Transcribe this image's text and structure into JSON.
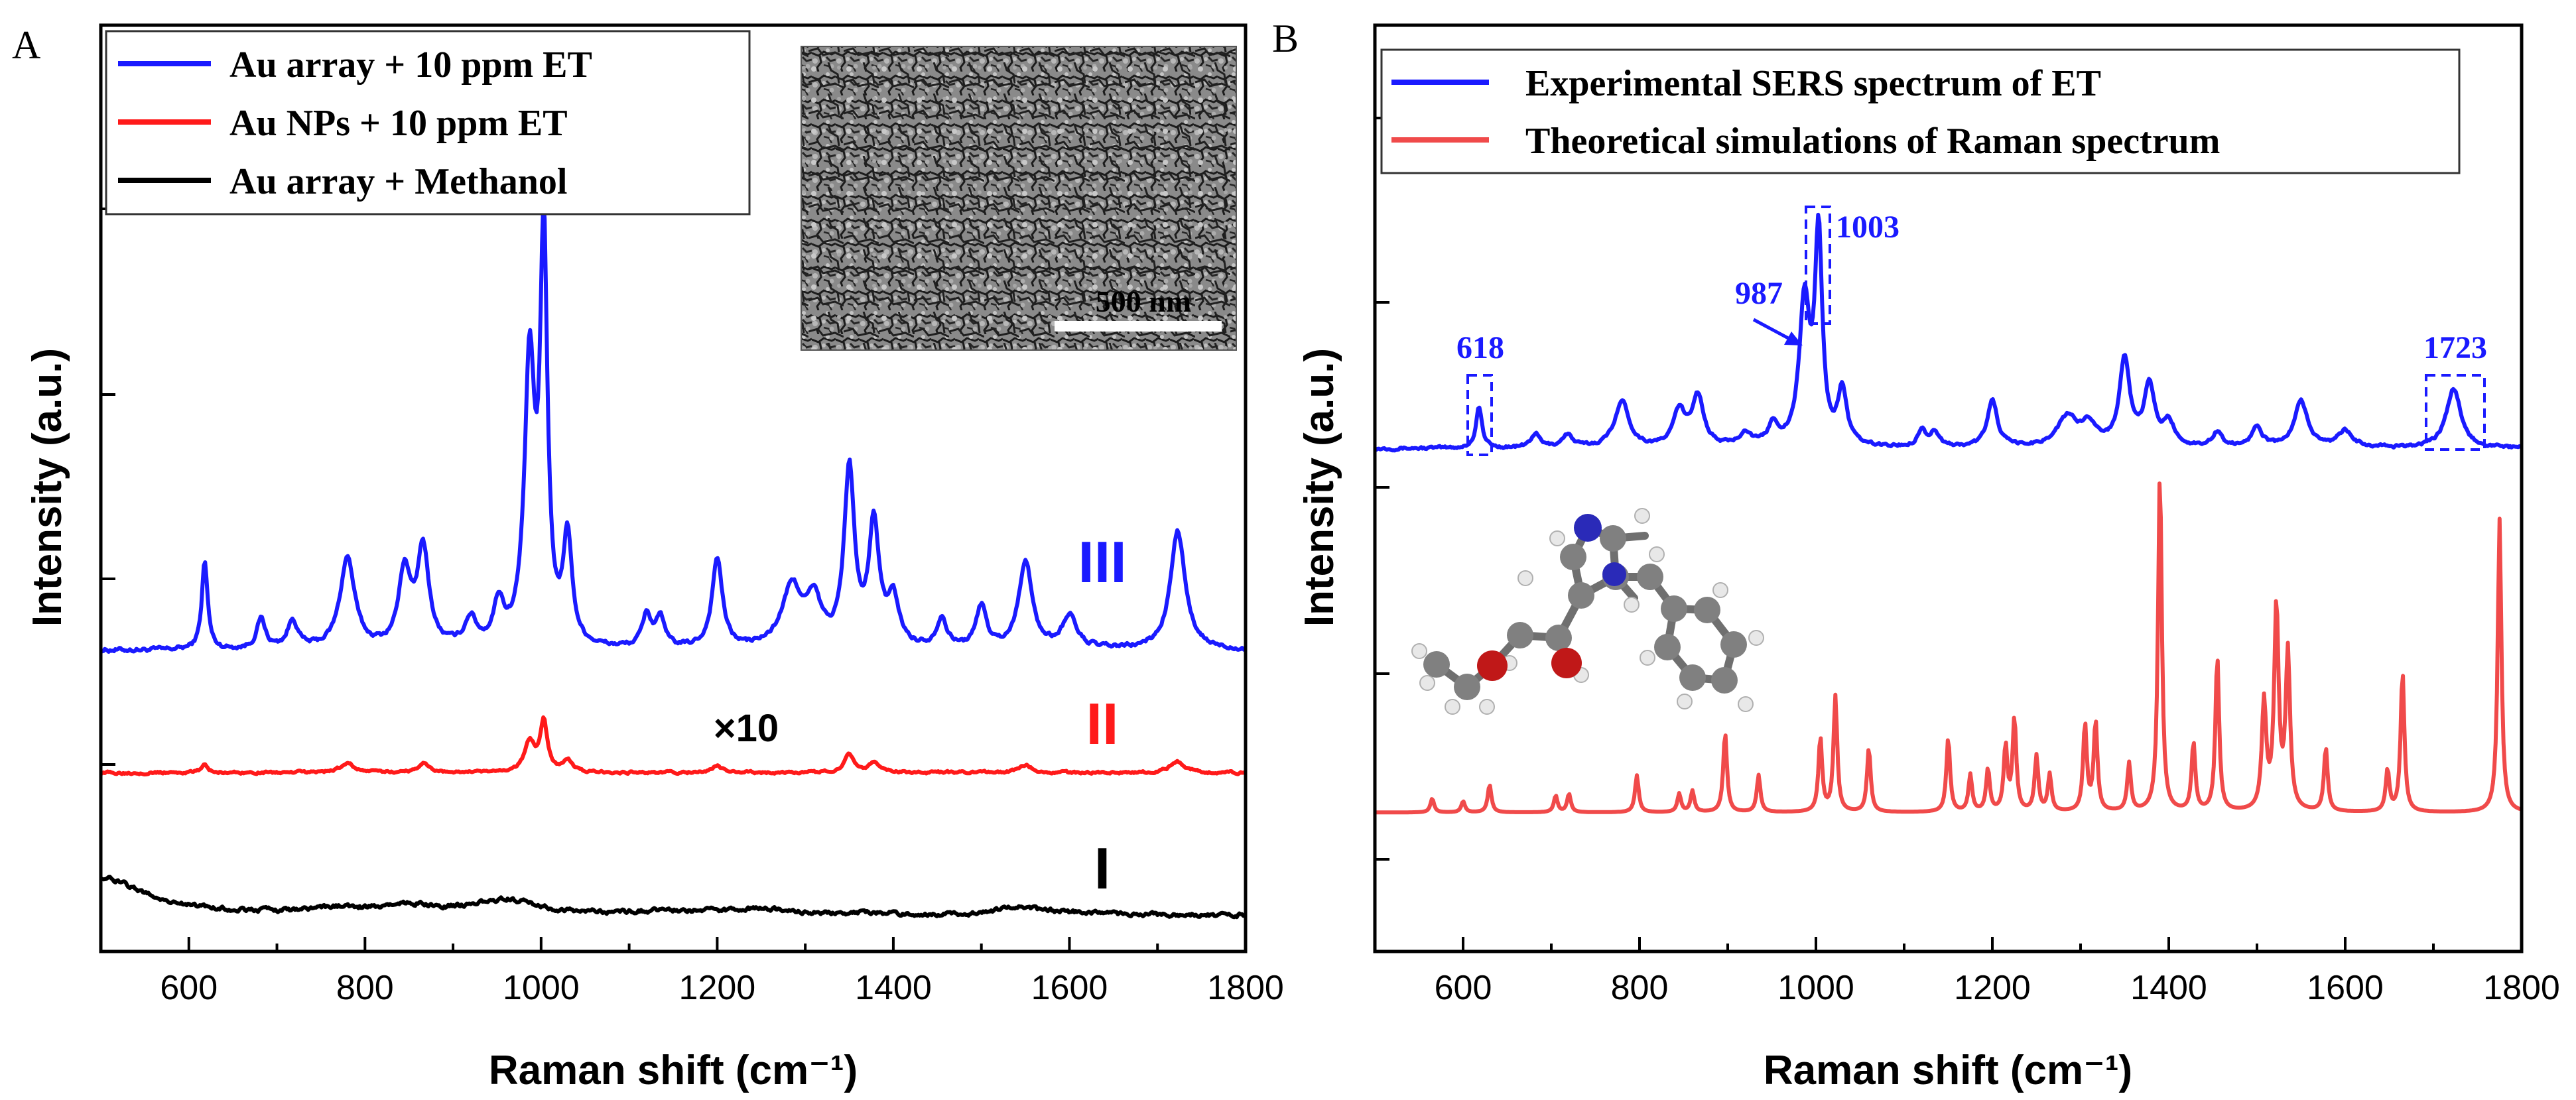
{
  "chart_data": [
    {
      "type": "line",
      "panel_label": "A",
      "xlabel": "Raman shift (cm⁻¹)",
      "ylabel": "Intensity (a.u.)",
      "xlim": [
        500,
        1800
      ],
      "ylim": [
        0,
        100
      ],
      "x_ticks": [
        600,
        800,
        1000,
        1200,
        1400,
        1600,
        1800
      ],
      "legend": {
        "position": "top-left",
        "entries": [
          {
            "label": "Au array + 10 ppm ET",
            "color": "#1a1aff"
          },
          {
            "label": "Au NPs + 10 ppm ET",
            "color": "#ff1a1a"
          },
          {
            "label": "Au array + Methanol",
            "color": "#000000"
          }
        ]
      },
      "inset": {
        "description": "SEM image of Au array",
        "scale_bar_label": "500 nm"
      },
      "series": [
        {
          "name": "Au array + 10 ppm ET",
          "color": "#1a1aff",
          "curve_label": "III",
          "baseline": 32.5,
          "noise": 0.35,
          "peaks": [
            [
              618,
              9.5,
              4
            ],
            [
              682,
              3.2,
              6
            ],
            [
              718,
              3,
              7
            ],
            [
              780,
              9.8,
              10
            ],
            [
              845,
              8.2,
              8
            ],
            [
              866,
              10.5,
              8
            ],
            [
              920,
              3,
              8
            ],
            [
              952,
              4.5,
              7
            ],
            [
              987,
              30,
              7
            ],
            [
              1003,
              43,
              5
            ],
            [
              1030,
              11.5,
              6
            ],
            [
              1120,
              3.5,
              6
            ],
            [
              1135,
              3.2,
              6
            ],
            [
              1200,
              9.7,
              7
            ],
            [
              1285,
              6.5,
              14
            ],
            [
              1310,
              4.5,
              10
            ],
            [
              1350,
              19,
              7
            ],
            [
              1378,
              13,
              7
            ],
            [
              1400,
              5,
              8
            ],
            [
              1455,
              3.2,
              7
            ],
            [
              1500,
              4.5,
              7
            ],
            [
              1550,
              9.5,
              9
            ],
            [
              1600,
              3.5,
              10
            ],
            [
              1723,
              12.8,
              10
            ]
          ]
        },
        {
          "name": "Au NPs + 10 ppm ET",
          "color": "#ff1a1a",
          "curve_label": "II",
          "scale_label": "×10",
          "baseline": 19.3,
          "noise": 0.2,
          "peaks": [
            [
              618,
              1,
              4
            ],
            [
              780,
              1,
              10
            ],
            [
              866,
              1,
              8
            ],
            [
              987,
              3.2,
              7
            ],
            [
              1003,
              5.5,
              5
            ],
            [
              1030,
              1.3,
              6
            ],
            [
              1200,
              0.7,
              7
            ],
            [
              1350,
              2,
              7
            ],
            [
              1378,
              1,
              7
            ],
            [
              1550,
              0.8,
              9
            ],
            [
              1723,
              1.2,
              10
            ]
          ]
        },
        {
          "name": "Au array + Methanol",
          "color": "#000000",
          "curve_label": "I",
          "baseline": 3.9,
          "noise": 0.35,
          "peaks": [
            [
              500,
              4,
              60
            ],
            [
              760,
              0.5,
              35
            ],
            [
              850,
              0.9,
              50
            ],
            [
              960,
              1.5,
              40
            ],
            [
              1160,
              0.4,
              60
            ],
            [
              1250,
              0.6,
              30
            ],
            [
              1380,
              0.2,
              40
            ],
            [
              1540,
              0.9,
              20
            ],
            [
              1590,
              0.3,
              40
            ]
          ]
        }
      ]
    },
    {
      "type": "line",
      "panel_label": "B",
      "xlabel": "Raman shift (cm⁻¹)",
      "ylabel": "Intensity (a.u.)",
      "xlim": [
        500,
        1800
      ],
      "ylim": [
        0,
        100
      ],
      "x_ticks": [
        600,
        800,
        1000,
        1200,
        1400,
        1600,
        1800
      ],
      "legend": {
        "position": "top-left",
        "entries": [
          {
            "label": "Experimental SERS spectrum of ET",
            "color": "#1a1aff"
          },
          {
            "label": "Theoretical simulations of Raman spectrum",
            "color": "#f04a4a"
          }
        ]
      },
      "annotations": [
        {
          "label": "618",
          "x": 618
        },
        {
          "label": "987",
          "x": 987
        },
        {
          "label": "1003",
          "x": 1003
        },
        {
          "label": "1723",
          "x": 1723
        }
      ],
      "inset": {
        "description": "ball-and-stick model of the ET molecule"
      },
      "series": [
        {
          "name": "Experimental SERS spectrum of ET",
          "color": "#1a1aff",
          "baseline": 54.3,
          "noise": 0.25,
          "peaks": [
            [
              618,
              4.5,
              4
            ],
            [
              682,
              1.5,
              6
            ],
            [
              718,
              1.4,
              7
            ],
            [
              780,
              5,
              10
            ],
            [
              845,
              3.8,
              8
            ],
            [
              866,
              5.5,
              8
            ],
            [
              920,
              1.5,
              8
            ],
            [
              952,
              2.3,
              7
            ],
            [
              987,
              15.5,
              7
            ],
            [
              1003,
              22.5,
              5
            ],
            [
              1030,
              6,
              6
            ],
            [
              1120,
              1.8,
              6
            ],
            [
              1135,
              1.6,
              6
            ],
            [
              1200,
              5,
              7
            ],
            [
              1285,
              3.2,
              14
            ],
            [
              1310,
              2.3,
              10
            ],
            [
              1350,
              9.5,
              7
            ],
            [
              1378,
              6.5,
              7
            ],
            [
              1400,
              2.5,
              8
            ],
            [
              1455,
              1.6,
              7
            ],
            [
              1500,
              2.3,
              7
            ],
            [
              1550,
              5,
              9
            ],
            [
              1600,
              1.8,
              10
            ],
            [
              1723,
              6.4,
              10
            ]
          ]
        },
        {
          "name": "Theoretical simulations of Raman spectrum",
          "color": "#f04a4a",
          "baseline": 15,
          "noise": 0,
          "peaks": [
            [
              565,
              1.5,
              2.5
            ],
            [
              600,
              1.2,
              2.5
            ],
            [
              630,
              3,
              2.5
            ],
            [
              705,
              1.8,
              2.5
            ],
            [
              720,
              2,
              2.5
            ],
            [
              797,
              4,
              2.5
            ],
            [
              845,
              2,
              2.5
            ],
            [
              860,
              2.3,
              2.5
            ],
            [
              897,
              8.6,
              2.5
            ],
            [
              935,
              4,
              2.5
            ],
            [
              1005,
              8,
              2.5
            ],
            [
              1022,
              12.5,
              2.5
            ],
            [
              1060,
              6.9,
              2.5
            ],
            [
              1150,
              8,
              2.5
            ],
            [
              1175,
              4,
              2.5
            ],
            [
              1195,
              4.6,
              2.5
            ],
            [
              1215,
              7,
              2.5
            ],
            [
              1225,
              10,
              2.5
            ],
            [
              1250,
              6,
              2.5
            ],
            [
              1265,
              4,
              2.5
            ],
            [
              1305,
              9.4,
              2.5
            ],
            [
              1317,
              9.7,
              2.5
            ],
            [
              1355,
              5.2,
              2.5
            ],
            [
              1390,
              36.8,
              2.5
            ],
            [
              1428,
              7.4,
              2.5
            ],
            [
              1455,
              16.8,
              2.5
            ],
            [
              1508,
              11.6,
              3
            ],
            [
              1522,
              22,
              3
            ],
            [
              1535,
              17,
              3
            ],
            [
              1578,
              6.9,
              2.5
            ],
            [
              1648,
              4.5,
              2.5
            ],
            [
              1665,
              15.2,
              2.5
            ],
            [
              1775,
              31.7,
              2.5
            ]
          ]
        }
      ]
    }
  ]
}
